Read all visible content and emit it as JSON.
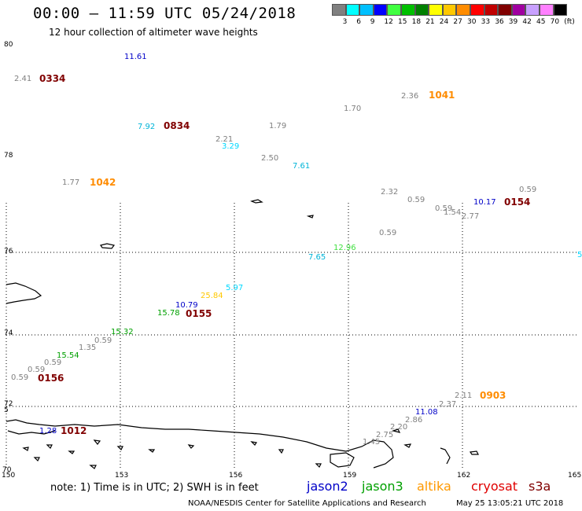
{
  "title": "00:00 – 11:59 UTC 05/24/2018",
  "subtitle": "12 hour collection of altimeter wave heights",
  "scale": {
    "labels": [
      "3",
      "6",
      "9",
      "12",
      "15",
      "18",
      "21",
      "24",
      "27",
      "30",
      "33",
      "36",
      "39",
      "42",
      "45",
      "70",
      "(ft)"
    ],
    "colors": [
      "#808080",
      "#00ffff",
      "#00c0ff",
      "#0000ff",
      "#40ff40",
      "#00c000",
      "#008000",
      "#ffff00",
      "#ffc800",
      "#ff8c00",
      "#ff0000",
      "#c00000",
      "#800000",
      "#a000a0",
      "#c8a0ff",
      "#ff80ff",
      "#000000"
    ]
  },
  "lat_labels": [
    "80",
    "78",
    "76",
    "74",
    "72",
    "70",
    "5"
  ],
  "lon_labels": [
    "150",
    "153",
    "156",
    "159",
    "162",
    "165"
  ],
  "observations": [
    {
      "text": "11.61",
      "color": "#0000c8"
    },
    {
      "text": "2.41",
      "color": "#808080"
    },
    {
      "text": "0334",
      "color": "#800000"
    },
    {
      "text": "2.36",
      "color": "#808080"
    },
    {
      "text": "1041",
      "color": "#ff8c00"
    },
    {
      "text": "1.70",
      "color": "#808080"
    },
    {
      "text": "7.92",
      "color": "#00b4d8"
    },
    {
      "text": "0834",
      "color": "#800000"
    },
    {
      "text": "1.79",
      "color": "#808080"
    },
    {
      "text": "2.21",
      "color": "#808080"
    },
    {
      "text": "3.29",
      "color": "#00d8ff"
    },
    {
      "text": "2.50",
      "color": "#808080"
    },
    {
      "text": "7.61",
      "color": "#00b4d8"
    },
    {
      "text": "1.77",
      "color": "#808080"
    },
    {
      "text": "1042",
      "color": "#ff8c00"
    },
    {
      "text": "2.32",
      "color": "#808080"
    },
    {
      "text": "0.59",
      "color": "#808080"
    },
    {
      "text": "0.59",
      "color": "#808080"
    },
    {
      "text": "0.59",
      "color": "#808080"
    },
    {
      "text": "1.54",
      "color": "#808080"
    },
    {
      "text": "2.77",
      "color": "#808080"
    },
    {
      "text": "10.17",
      "color": "#0000c8"
    },
    {
      "text": "0154",
      "color": "#800000"
    },
    {
      "text": "0.59",
      "color": "#808080"
    },
    {
      "text": "12.96",
      "color": "#40e040"
    },
    {
      "text": "7.65",
      "color": "#00b4d8"
    },
    {
      "text": "5",
      "color": "#00d8ff"
    },
    {
      "text": "5.97",
      "color": "#00d8ff"
    },
    {
      "text": "25.84",
      "color": "#ffc800"
    },
    {
      "text": "10.79",
      "color": "#0000c8"
    },
    {
      "text": "15.78",
      "color": "#00a000"
    },
    {
      "text": "0155",
      "color": "#800000"
    },
    {
      "text": "15.32",
      "color": "#00a000"
    },
    {
      "text": "0.59",
      "color": "#808080"
    },
    {
      "text": "1.35",
      "color": "#808080"
    },
    {
      "text": "15.54",
      "color": "#00a000"
    },
    {
      "text": "0.59",
      "color": "#808080"
    },
    {
      "text": "0.59",
      "color": "#808080"
    },
    {
      "text": "0.59",
      "color": "#808080"
    },
    {
      "text": "0156",
      "color": "#800000"
    },
    {
      "text": "2.11",
      "color": "#808080"
    },
    {
      "text": "0903",
      "color": "#ff8c00"
    },
    {
      "text": "2.37",
      "color": "#808080"
    },
    {
      "text": "11.08",
      "color": "#0000c8"
    },
    {
      "text": "2.86",
      "color": "#808080"
    },
    {
      "text": "2.20",
      "color": "#808080"
    },
    {
      "text": "2.75",
      "color": "#808080"
    },
    {
      "text": "1.45",
      "color": "#808080"
    },
    {
      "text": "1.28",
      "color": "#0000c8"
    },
    {
      "text": "1012",
      "color": "#800000"
    }
  ],
  "footnote": "note: 1) Time is in UTC; 2) SWH is in feet",
  "legend": [
    {
      "text": "jason2",
      "color": "#0000c8"
    },
    {
      "text": "jason3",
      "color": "#00a000"
    },
    {
      "text": "altika",
      "color": "#ff9900"
    },
    {
      "text": "cryosat",
      "color": "#e00000"
    },
    {
      "text": "s3a",
      "color": "#800000"
    }
  ],
  "credit": "NOAA/NESDIS Center for Satellite Applications and Research",
  "timestamp": "May 25 13:05:21 UTC 2018"
}
